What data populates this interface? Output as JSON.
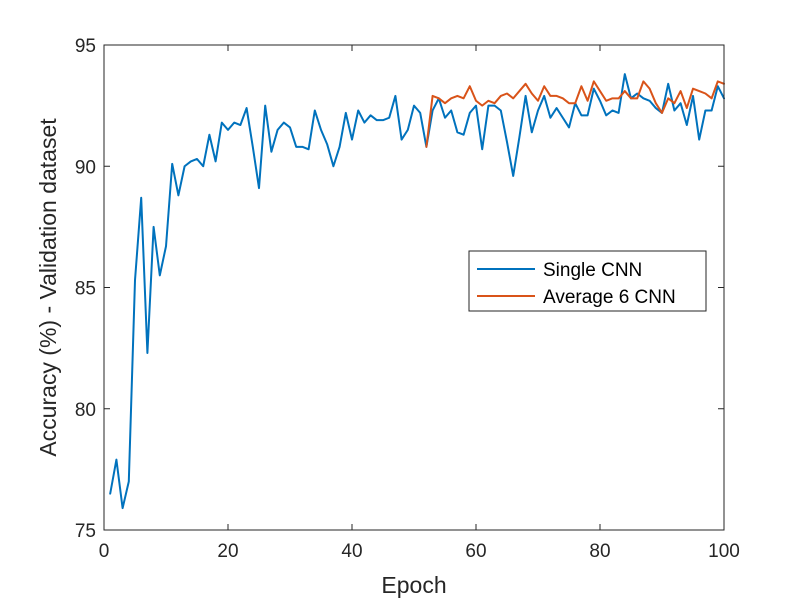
{
  "chart_data": {
    "type": "line",
    "title": "",
    "xlabel": "Epoch",
    "ylabel": "Accuracy (%) - Validation dataset",
    "xlim": [
      0,
      100
    ],
    "ylim": [
      75,
      95
    ],
    "xticks": [
      0,
      20,
      40,
      60,
      80,
      100
    ],
    "yticks": [
      75,
      80,
      85,
      90,
      95
    ],
    "xtick_labels": [
      "0",
      "20",
      "40",
      "60",
      "80",
      "100"
    ],
    "ytick_labels": [
      "75",
      "80",
      "85",
      "90",
      "95"
    ],
    "grid": false,
    "box": true,
    "legend_position": "center-right",
    "series": [
      {
        "name": "Single CNN",
        "color": "#0072BD",
        "x": [
          1,
          2,
          3,
          4,
          5,
          6,
          7,
          8,
          9,
          10,
          11,
          12,
          13,
          14,
          15,
          16,
          17,
          18,
          19,
          20,
          21,
          22,
          23,
          24,
          25,
          26,
          27,
          28,
          29,
          30,
          31,
          32,
          33,
          34,
          35,
          36,
          37,
          38,
          39,
          40,
          41,
          42,
          43,
          44,
          45,
          46,
          47,
          48,
          49,
          50,
          51,
          52,
          53,
          54,
          55,
          56,
          57,
          58,
          59,
          60,
          61,
          62,
          63,
          64,
          65,
          66,
          67,
          68,
          69,
          70,
          71,
          72,
          73,
          74,
          75,
          76,
          77,
          78,
          79,
          80,
          81,
          82,
          83,
          84,
          85,
          86,
          87,
          88,
          89,
          90,
          91,
          92,
          93,
          94,
          95,
          96,
          97,
          98,
          99,
          100
        ],
        "y": [
          76.5,
          77.9,
          75.9,
          77.0,
          85.3,
          88.7,
          82.3,
          87.5,
          85.5,
          86.7,
          90.1,
          88.8,
          90.0,
          90.2,
          90.3,
          90.0,
          91.3,
          90.2,
          91.8,
          91.5,
          91.8,
          91.7,
          92.4,
          90.8,
          89.1,
          92.5,
          90.6,
          91.5,
          91.8,
          91.6,
          90.8,
          90.8,
          90.7,
          92.3,
          91.5,
          90.9,
          90.0,
          90.8,
          92.2,
          91.1,
          92.3,
          91.8,
          92.1,
          91.9,
          91.9,
          92.0,
          92.9,
          91.1,
          91.5,
          92.5,
          92.2,
          90.8,
          92.3,
          92.8,
          92.0,
          92.3,
          91.4,
          91.3,
          92.2,
          92.5,
          90.7,
          92.5,
          92.5,
          92.3,
          91.0,
          89.6,
          91.2,
          92.9,
          91.4,
          92.3,
          92.9,
          92.0,
          92.4,
          92.0,
          91.6,
          92.6,
          92.1,
          92.1,
          93.2,
          92.7,
          92.1,
          92.3,
          92.2,
          93.8,
          92.8,
          93.0,
          92.8,
          92.7,
          92.4,
          92.2,
          93.4,
          92.3,
          92.6,
          91.7,
          92.9,
          91.1,
          92.3,
          92.3,
          93.3,
          92.8
        ]
      },
      {
        "name": "Average 6 CNN",
        "color": "#D95319",
        "x": [
          52,
          53,
          54,
          55,
          56,
          57,
          58,
          59,
          60,
          61,
          62,
          63,
          64,
          65,
          66,
          67,
          68,
          69,
          70,
          71,
          72,
          73,
          74,
          75,
          76,
          77,
          78,
          79,
          80,
          81,
          82,
          83,
          84,
          85,
          86,
          87,
          88,
          89,
          90,
          91,
          92,
          93,
          94,
          95,
          96,
          97,
          98,
          99,
          100
        ],
        "y": [
          90.8,
          92.9,
          92.8,
          92.6,
          92.8,
          92.9,
          92.8,
          93.3,
          92.7,
          92.5,
          92.7,
          92.6,
          92.9,
          93.0,
          92.8,
          93.1,
          93.4,
          93.0,
          92.7,
          93.3,
          92.9,
          92.9,
          92.8,
          92.6,
          92.6,
          93.3,
          92.7,
          93.5,
          93.1,
          92.7,
          92.8,
          92.8,
          93.1,
          92.8,
          92.8,
          93.5,
          93.2,
          92.6,
          92.2,
          92.8,
          92.6,
          93.1,
          92.4,
          93.2,
          93.1,
          93.0,
          92.8,
          93.5,
          93.4
        ]
      }
    ]
  }
}
